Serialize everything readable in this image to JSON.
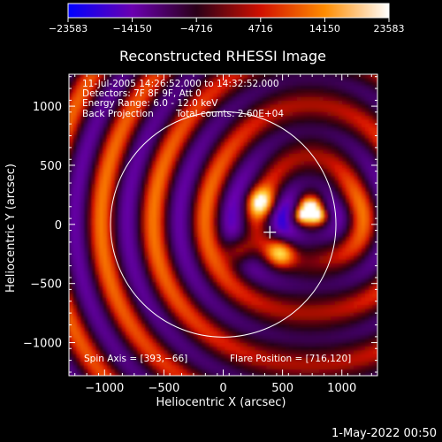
{
  "colorbar": {
    "min": -23583,
    "max": 23583,
    "tick_labels": [
      "−23583",
      "−14150",
      "−4716",
      "4716",
      "14150",
      "23583"
    ],
    "colors": [
      "#0000ff",
      "#6a00b0",
      "#2a0018",
      "#d01000",
      "#ff8c00",
      "#ffffff"
    ]
  },
  "chart_data": {
    "type": "heatmap",
    "title": "Reconstructed RHESSI Image",
    "xlabel": "Heliocentric X (arcsec)",
    "ylabel": "Heliocentric Y (arcsec)",
    "xlim": [
      -1300,
      1300
    ],
    "ylim": [
      -1280,
      1270
    ],
    "xticks": [
      -1000,
      -500,
      0,
      500,
      1000
    ],
    "yticks": [
      -1000,
      -500,
      0,
      500,
      1000
    ],
    "x_tick_labels": [
      "−1000",
      "−500",
      "0",
      "500",
      "1000"
    ],
    "y_tick_labels": [
      "−1000",
      "−500",
      "0",
      "500",
      "1000"
    ],
    "solar_limb_radius_arcsec": 950,
    "spin_axis": [
      393,
      -66
    ],
    "flare_position": [
      716,
      120
    ],
    "sources": [
      {
        "x": 716,
        "y": 120,
        "amplitude": 23583
      },
      {
        "x": 300,
        "y": 200,
        "amplitude": 14150
      },
      {
        "x": 120,
        "y": -200,
        "amplitude": 14150
      },
      {
        "x": 470,
        "y": -220,
        "amplitude": 14150
      }
    ],
    "annotations": [
      "11-Jul-2005 14:26:52.000 to 14:32:52.000",
      "Detectors: 7F 8F 9F, Att 0",
      "Energy Range: 6.0 - 12.0 keV",
      "Back Projection",
      "Total counts: 2.60E+04"
    ],
    "bottom_left_label": "Spin Axis = [393,−66]",
    "bottom_right_label": "Flare Position = [716,120]"
  },
  "timestamp": "1-May-2022 00:50"
}
